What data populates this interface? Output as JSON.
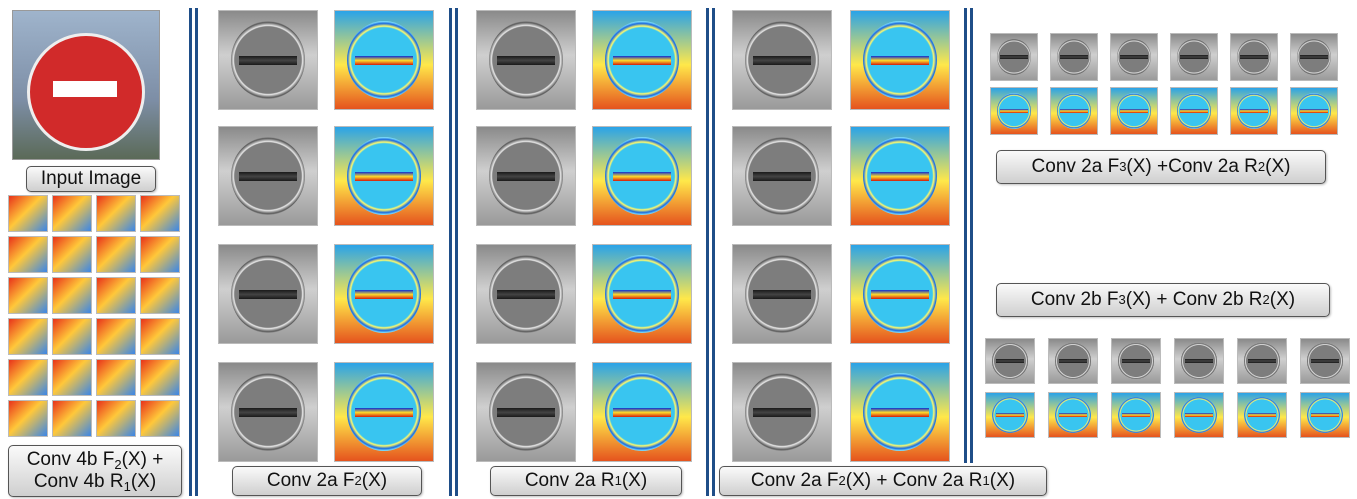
{
  "labels": {
    "input_image": "Input Image",
    "conv4b_line1": "Conv 4b F",
    "conv4b_sub1": "2",
    "conv4b_mid": "(X) +",
    "conv4b_line2": "Conv 4b R",
    "conv4b_sub2": "1",
    "conv4b_end": "(X)",
    "col1_pre": "Conv 2a F",
    "col1_sub": "2",
    "col1_post": "(X)",
    "col2_pre": "Conv 2a R",
    "col2_sub": "1",
    "col2_post": "(X)",
    "col3_a": "Conv 2a F",
    "col3_sub1": "2",
    "col3_b": "(X) + Conv 2a R",
    "col3_sub2": "1",
    "col3_c": "(X)",
    "right_top_a": "Conv 2a F",
    "right_top_sub1": "3",
    "right_top_b": "(X) +Conv 2a R",
    "right_top_sub2": "2",
    "right_top_c": "(X)",
    "right_bot_a": "Conv 2b F",
    "right_bot_sub1": "3",
    "right_bot_b": "(X) + Conv 2b R",
    "right_bot_sub2": "2",
    "right_bot_c": "(X)"
  },
  "colors": {
    "separator": "#1f4e88",
    "label_border": "#555555"
  }
}
